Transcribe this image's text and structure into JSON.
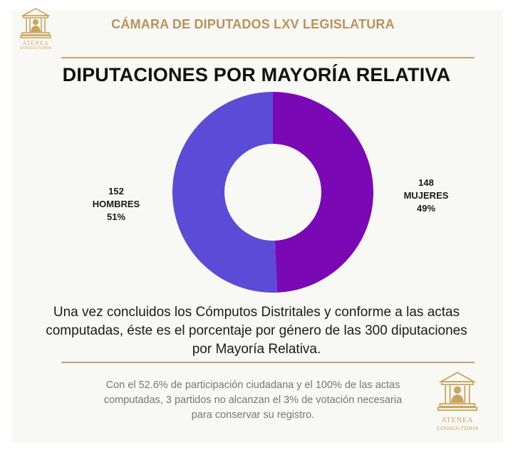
{
  "header": {
    "title": "CÁMARA DE DIPUTADOS  LXV LEGISLATURA",
    "logo_small": {
      "word": "ATENEA",
      "sub": "CONSULTORÍA"
    },
    "logo_large": {
      "word": "ATENEA",
      "sub": "CONSULTORÍA"
    }
  },
  "chart_data": {
    "type": "pie",
    "title": "DIPUTACIONES POR MAYORÍA RELATIVA",
    "donut": true,
    "start_angle_deg": 0,
    "slices": [
      {
        "count": "148",
        "label": "MUJERES",
        "percent_text": "49%",
        "value": 148,
        "color": "#7a09b5",
        "position": "right"
      },
      {
        "count": "152",
        "label": "HOMBRES",
        "percent_text": "51%",
        "value": 152,
        "color": "#5b4bd6",
        "position": "left"
      }
    ],
    "total": 300
  },
  "description": "Una vez concluidos los Cómputos Distritales y conforme a las actas computadas, éste es el porcentaje por género de las 300 diputaciones por Mayoría Relativa.",
  "footnote": "Con el 52.6% de participación ciudadana y el 100% de las actas computadas, 3 partidos no alcanzan el 3% de votación necesaria para conservar su registro."
}
